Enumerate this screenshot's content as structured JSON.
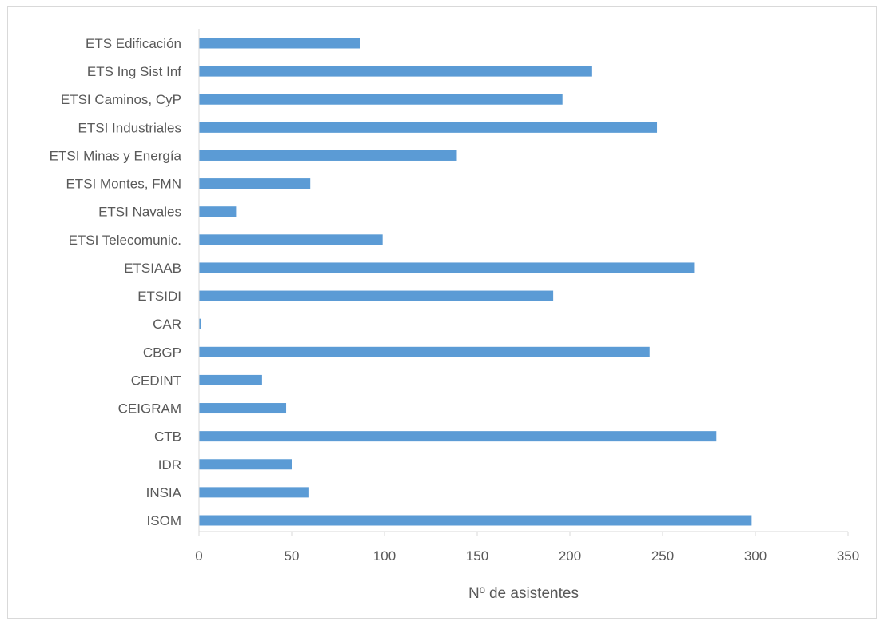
{
  "chart_data": {
    "type": "bar",
    "orientation": "horizontal",
    "categories": [
      "ETS Edificación",
      "ETS Ing Sist Inf",
      "ETSI Caminos, CyP",
      "ETSI Industriales",
      "ETSI Minas y Energía",
      "ETSI Montes, FMN",
      "ETSI Navales",
      "ETSI Telecomunic.",
      "ETSIAAB",
      "ETSIDI",
      "CAR",
      "CBGP",
      "CEDINT",
      "CEIGRAM",
      "CTB",
      "IDR",
      "INSIA",
      "ISOM"
    ],
    "values": [
      87,
      212,
      196,
      247,
      139,
      60,
      20,
      99,
      267,
      191,
      1,
      243,
      34,
      47,
      279,
      50,
      59,
      298
    ],
    "xlabel": "Nº de asistentes",
    "xlim": [
      0,
      350
    ],
    "xticks": [
      "0",
      "50",
      "100",
      "150",
      "200",
      "250",
      "300",
      "350"
    ],
    "bar_color": "#5b9bd5",
    "grid": false,
    "legend": "none"
  }
}
